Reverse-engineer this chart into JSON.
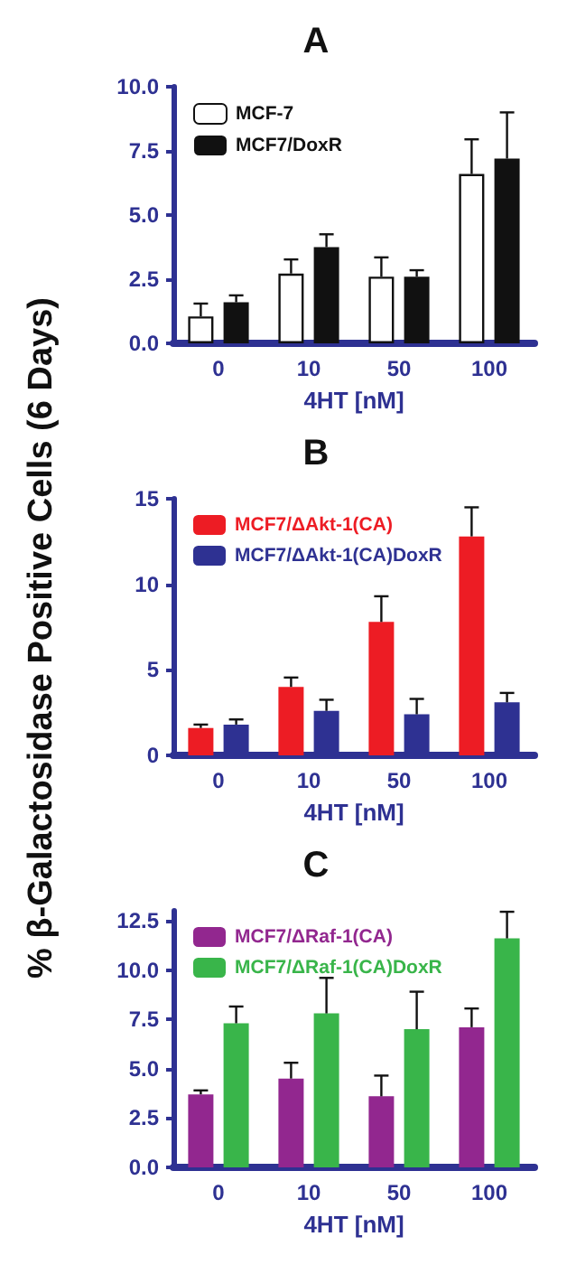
{
  "chart_data": [
    {
      "type": "bar",
      "title": "A",
      "xlabel": "4HT [nM]",
      "ylabel": "% β-Galactosidase Positive Cells (6 Days)",
      "categories": [
        "0",
        "10",
        "50",
        "100"
      ],
      "ylim": [
        0,
        10
      ],
      "yticks": [
        {
          "value": 0,
          "label": "0.0"
        },
        {
          "value": 2.5,
          "label": "2.5"
        },
        {
          "value": 5,
          "label": "5.0"
        },
        {
          "value": 7.5,
          "label": "7.5"
        },
        {
          "value": 10,
          "label": "10.0"
        }
      ],
      "legend": "top left",
      "grid": false,
      "series": [
        {
          "name": "MCF-7",
          "color": "#ffffff",
          "values": [
            1.05,
            2.72,
            2.6,
            6.6
          ],
          "errors": [
            0.5,
            0.55,
            0.75,
            1.35
          ]
        },
        {
          "name": "MCF7/DoxR",
          "color": "#111111",
          "values": [
            1.6,
            3.75,
            2.6,
            7.2
          ],
          "errors": [
            0.27,
            0.5,
            0.25,
            1.8
          ]
        }
      ]
    },
    {
      "type": "bar",
      "title": "B",
      "xlabel": "4HT [nM]",
      "categories": [
        "0",
        "10",
        "50",
        "100"
      ],
      "ylim": [
        0,
        15
      ],
      "yticks": [
        0,
        5,
        10,
        15
      ],
      "legend": "top left",
      "grid": false,
      "series": [
        {
          "name": "MCF7/ΔAkt-1(CA)",
          "color": "#ed1c24",
          "values": [
            1.6,
            4.0,
            7.8,
            12.8
          ],
          "errors": [
            0.2,
            0.55,
            1.5,
            1.7
          ]
        },
        {
          "name": "MCF7/ΔAkt-1(CA)DoxR",
          "color": "#2e3192",
          "values": [
            1.8,
            2.6,
            2.4,
            3.1
          ],
          "errors": [
            0.3,
            0.65,
            0.9,
            0.55
          ]
        }
      ]
    },
    {
      "type": "bar",
      "title": "C",
      "xlabel": "4HT [nM]",
      "categories": [
        "0",
        "10",
        "50",
        "100"
      ],
      "ylim": [
        0,
        13
      ],
      "yticks": [
        {
          "value": 0,
          "label": "0.0"
        },
        {
          "value": 2.5,
          "label": "2.5"
        },
        {
          "value": 5,
          "label": "5.0"
        },
        {
          "value": 7.5,
          "label": "7.5"
        },
        {
          "value": 10,
          "label": "10.0"
        },
        {
          "value": 12.5,
          "label": "12.5"
        }
      ],
      "legend": "top left",
      "grid": false,
      "series": [
        {
          "name": "MCF7/ΔRaf-1(CA)",
          "color": "#92278f",
          "values": [
            3.7,
            4.5,
            3.6,
            7.1
          ],
          "errors": [
            0.2,
            0.8,
            1.05,
            0.95
          ]
        },
        {
          "name": "MCF7/ΔRaf-1(CA)DoxR",
          "color": "#39b54a",
          "values": [
            7.3,
            7.8,
            7.0,
            11.6
          ],
          "errors": [
            0.85,
            1.8,
            1.9,
            1.35
          ]
        }
      ]
    }
  ]
}
